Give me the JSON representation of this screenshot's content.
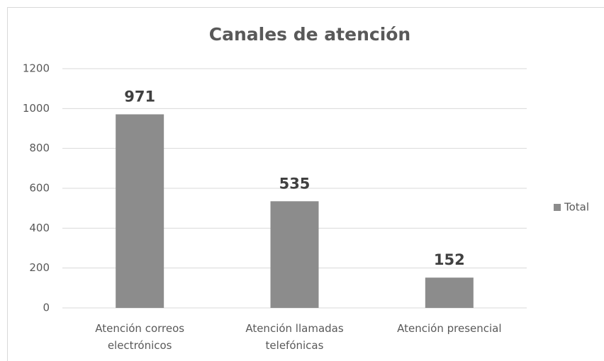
{
  "chart_data": {
    "type": "bar",
    "title": "Canales de atención",
    "categories": [
      "Atención correos electrónicos",
      "Atención llamadas telefónicas",
      "Atención presencial"
    ],
    "series": [
      {
        "name": "Total",
        "color": "#8c8c8c",
        "values": [
          971,
          535,
          152
        ]
      }
    ],
    "ylim": [
      0,
      1200
    ],
    "yticks": [
      0,
      200,
      400,
      600,
      800,
      1000,
      1200
    ],
    "grid": true,
    "legend": "right"
  }
}
